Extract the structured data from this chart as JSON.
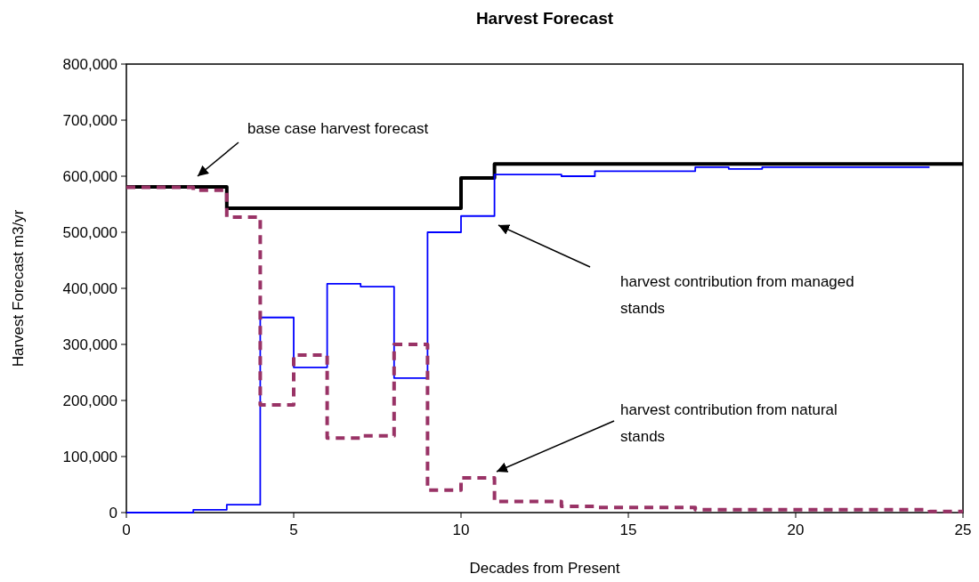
{
  "chart_data": {
    "type": "step",
    "title": "Harvest Forecast",
    "xlabel": "Decades from Present",
    "ylabel": "Harvest Forecast m3/yr",
    "xlim": [
      0,
      25
    ],
    "xticks": [
      0,
      5,
      10,
      15,
      20,
      25
    ],
    "ylim": [
      0,
      800000
    ],
    "yticks": [
      {
        "value": 0,
        "label": "0"
      },
      {
        "value": 100000,
        "label": "100,000"
      },
      {
        "value": 200000,
        "label": "200,000"
      },
      {
        "value": 300000,
        "label": "300,000"
      },
      {
        "value": 400000,
        "label": "400,000"
      },
      {
        "value": 500000,
        "label": "500,000"
      },
      {
        "value": 600000,
        "label": "600,000"
      },
      {
        "value": 700000,
        "label": "700,000"
      },
      {
        "value": 800000,
        "label": "800,000"
      }
    ],
    "grid": false,
    "marker": "none",
    "series": [
      {
        "color": "#000000",
        "line_style": "solid",
        "x": [
          0,
          1,
          2,
          3,
          4,
          5,
          6,
          7,
          8,
          9,
          10,
          11,
          12,
          13,
          14,
          15,
          16,
          17,
          18,
          19,
          20,
          21,
          22,
          23,
          24,
          25
        ],
        "values": [
          581000,
          581000,
          581000,
          543000,
          543000,
          543000,
          543000,
          543000,
          543000,
          543000,
          597000,
          622000,
          622000,
          622000,
          622000,
          622000,
          622000,
          622000,
          622000,
          622000,
          622000,
          622000,
          622000,
          622000,
          622000,
          622000
        ]
      },
      {
        "color": "#0000ff",
        "line_style": "solid",
        "x": [
          0,
          1,
          2,
          3,
          4,
          5,
          6,
          7,
          8,
          9,
          10,
          11,
          12,
          13,
          14,
          15,
          16,
          17,
          18,
          19,
          20,
          21,
          22,
          23,
          24
        ],
        "values": [
          0,
          0,
          5000,
          14000,
          348000,
          259000,
          408000,
          403000,
          240000,
          500000,
          529000,
          603000,
          603000,
          600000,
          609000,
          609000,
          609000,
          616000,
          613000,
          616000,
          616000,
          616000,
          616000,
          616000,
          616000
        ]
      },
      {
        "color": "#993366",
        "line_style": "dashed",
        "x": [
          0,
          1,
          2,
          3,
          4,
          5,
          6,
          7,
          8,
          9,
          10,
          11,
          12,
          13,
          14,
          15,
          16,
          17,
          18,
          19,
          20,
          21,
          22,
          23,
          24,
          25
        ],
        "values": [
          580000,
          580000,
          575000,
          527000,
          192000,
          281000,
          133000,
          137000,
          300000,
          40000,
          62000,
          20000,
          20000,
          11000,
          9000,
          9000,
          9000,
          5000,
          5000,
          5000,
          5000,
          5000,
          5000,
          5000,
          2000,
          2000
        ]
      }
    ],
    "annotations": [
      "base case harvest forecast",
      "harvest contribution from managed stands",
      "harvest contribution from natural stands"
    ]
  }
}
